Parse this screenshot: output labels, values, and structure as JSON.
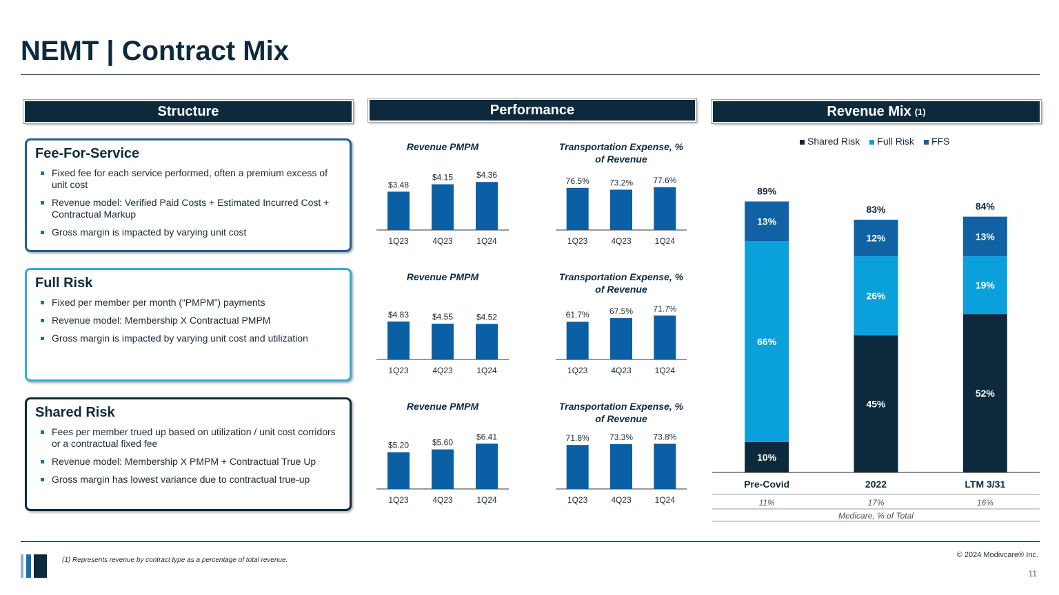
{
  "page": {
    "title": "NEMT | Contract Mix",
    "footnote": "(1) Represents revenue by contract type as a percentage of total revenue.",
    "copyright": "© 2024 Modivcare® Inc.",
    "page_number": "11"
  },
  "sections": {
    "structure": "Structure",
    "performance": "Performance",
    "revenue_mix": "Revenue Mix",
    "revenue_mix_note": "(1)"
  },
  "cards": [
    {
      "title": "Fee-For-Service",
      "bullets": [
        "Fixed fee for each service performed, often a premium excess of unit cost",
        "Revenue model: Verified Paid Costs + Estimated Incurred Cost + Contractual Markup",
        "Gross margin is impacted by varying unit cost"
      ]
    },
    {
      "title": "Full Risk",
      "bullets": [
        "Fixed per member per month (“PMPM”) payments",
        "Revenue model: Membership X Contractual PMPM",
        "Gross margin is impacted by varying unit cost and utilization"
      ]
    },
    {
      "title": "Shared Risk",
      "bullets": [
        "Fees per member trued up based on utilization / unit cost corridors or a contractual fixed fee",
        "Revenue model: Membership X PMPM + Contractual True Up",
        "Gross margin has lowest variance due to contractual true-up"
      ]
    }
  ],
  "colors": {
    "navy": "#0d2a3d",
    "bar_blue": "#0b5fa5",
    "light_blue": "#0aa0dc",
    "mid_blue": "#1062a4"
  },
  "chart_data": [
    {
      "type": "bar",
      "id": "ffs-pmpm",
      "title": "Revenue PMPM",
      "categories": [
        "1Q23",
        "4Q23",
        "1Q24"
      ],
      "values": [
        3.48,
        4.15,
        4.36
      ],
      "labels": [
        "$3.48",
        "$4.15",
        "$4.36"
      ],
      "ylim": [
        0,
        5
      ]
    },
    {
      "type": "bar",
      "id": "ffs-exp",
      "title": "Transportation Expense, % of Revenue",
      "categories": [
        "1Q23",
        "4Q23",
        "1Q24"
      ],
      "values": [
        76.5,
        73.2,
        77.6
      ],
      "labels": [
        "76.5%",
        "73.2%",
        "77.6%"
      ],
      "ylim": [
        0,
        100
      ]
    },
    {
      "type": "bar",
      "id": "fr-pmpm",
      "title": "Revenue PMPM",
      "categories": [
        "1Q23",
        "4Q23",
        "1Q24"
      ],
      "values": [
        4.83,
        4.55,
        4.52
      ],
      "labels": [
        "$4.83",
        "$4.55",
        "$4.52"
      ],
      "ylim": [
        0,
        7
      ]
    },
    {
      "type": "bar",
      "id": "fr-exp",
      "title": "Transportation Expense, % of Revenue",
      "categories": [
        "1Q23",
        "4Q23",
        "1Q24"
      ],
      "values": [
        61.7,
        67.5,
        71.7
      ],
      "labels": [
        "61.7%",
        "67.5%",
        "71.7%"
      ],
      "ylim": [
        0,
        90
      ]
    },
    {
      "type": "bar",
      "id": "sr-pmpm",
      "title": "Revenue PMPM",
      "categories": [
        "1Q23",
        "4Q23",
        "1Q24"
      ],
      "values": [
        5.2,
        5.6,
        6.41
      ],
      "labels": [
        "$5.20",
        "$5.60",
        "$6.41"
      ],
      "ylim": [
        0,
        7.8
      ]
    },
    {
      "type": "bar",
      "id": "sr-exp",
      "title": "Transportation Expense, % of Revenue",
      "categories": [
        "1Q23",
        "4Q23",
        "1Q24"
      ],
      "values": [
        71.8,
        73.3,
        73.8
      ],
      "labels": [
        "71.8%",
        "73.3%",
        "73.8%"
      ],
      "ylim": [
        0,
        90
      ]
    },
    {
      "type": "bar",
      "id": "revenue-mix",
      "stacked": true,
      "title": "Revenue Mix",
      "categories": [
        "Pre-Covid",
        "2022",
        "LTM 3/31"
      ],
      "series": [
        {
          "name": "Shared Risk",
          "values": [
            10,
            45,
            52
          ],
          "labels": [
            "10%",
            "45%",
            "52%"
          ]
        },
        {
          "name": "Full Risk",
          "values": [
            66,
            26,
            19
          ],
          "labels": [
            "66%",
            "26%",
            "19%"
          ]
        },
        {
          "name": "FFS",
          "values": [
            13,
            12,
            13
          ],
          "labels": [
            "13%",
            "12%",
            "13%"
          ]
        }
      ],
      "totals": [
        "89%",
        "83%",
        "84%"
      ],
      "ylim": [
        0,
        95
      ],
      "medicare_values": [
        "11%",
        "17%",
        "16%"
      ],
      "medicare_label": "Medicare, % of Total",
      "legend_position": "top"
    }
  ]
}
